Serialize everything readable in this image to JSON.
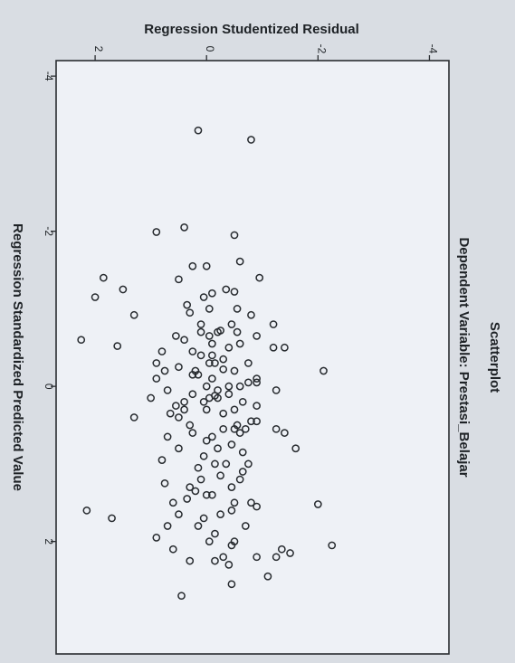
{
  "chart_data": {
    "type": "scatter",
    "orientation": "rotated-90-clockwise",
    "title": "Scatterplot",
    "subtitle": "Dependent Variable: Prestasi_Belajar",
    "xlabel": "Regression Standardized Predicted Value",
    "ylabel": "Regression Studentized Residual",
    "xlim": [
      -4.2,
      3.45
    ],
    "ylim": [
      -4.35,
      2.7
    ],
    "xticks": [
      -4,
      -2,
      0,
      2
    ],
    "yticks": [
      -4,
      -2,
      0,
      2
    ],
    "xtick_labels": [
      "-4",
      "-2",
      "0",
      "2"
    ],
    "ytick_labels": [
      "-4",
      "-2",
      "0",
      "2"
    ],
    "grid": false,
    "background_color": "#eef1f6",
    "frame_color": "#2a2d31",
    "marker": "open-circle",
    "marker_color": "#262a2e",
    "points": [
      [
        -3.18,
        -0.8
      ],
      [
        -2.05,
        0.4
      ],
      [
        -1.99,
        0.9
      ],
      [
        -1.61,
        -0.6
      ],
      [
        -1.55,
        0.25
      ],
      [
        -1.55,
        0.0
      ],
      [
        -1.4,
        1.85
      ],
      [
        -1.4,
        -0.95
      ],
      [
        -1.38,
        0.5
      ],
      [
        -1.25,
        1.5
      ],
      [
        -1.15,
        0.05
      ],
      [
        -1.15,
        2.0
      ],
      [
        -1.22,
        -0.5
      ],
      [
        -0.92,
        1.3
      ],
      [
        -0.92,
        -0.8
      ],
      [
        -0.72,
        -0.25
      ],
      [
        -0.7,
        -0.55
      ],
      [
        -0.6,
        2.25
      ],
      [
        -0.5,
        -1.4
      ],
      [
        -0.52,
        1.6
      ],
      [
        -0.5,
        -1.2
      ],
      [
        -0.35,
        -0.3
      ],
      [
        -0.3,
        0.9
      ],
      [
        -0.22,
        -0.3
      ],
      [
        -0.15,
        0.25
      ],
      [
        -0.1,
        0.9
      ],
      [
        0.0,
        -0.4
      ],
      [
        0.05,
        -1.25
      ],
      [
        0.0,
        -0.6
      ],
      [
        0.05,
        -0.2
      ],
      [
        -0.1,
        -0.9
      ],
      [
        -0.05,
        -0.9
      ],
      [
        -0.2,
        -2.1
      ],
      [
        0.12,
        -0.15
      ],
      [
        0.15,
        -0.05
      ],
      [
        0.2,
        0.4
      ],
      [
        0.25,
        0.55
      ],
      [
        0.3,
        -0.5
      ],
      [
        0.35,
        -0.3
      ],
      [
        0.45,
        -0.8
      ],
      [
        0.55,
        -0.5
      ],
      [
        0.6,
        -1.4
      ],
      [
        0.6,
        -0.6
      ],
      [
        0.65,
        -0.1
      ],
      [
        0.8,
        -1.6
      ],
      [
        1.0,
        -0.75
      ],
      [
        1.0,
        -0.15
      ],
      [
        1.2,
        0.1
      ],
      [
        1.3,
        0.3
      ],
      [
        1.1,
        -0.65
      ],
      [
        1.5,
        -0.5
      ],
      [
        1.5,
        0.6
      ],
      [
        1.52,
        -2.0
      ],
      [
        1.4,
        -0.1
      ],
      [
        2.45,
        -1.1
      ],
      [
        2.05,
        -2.25
      ],
      [
        2.1,
        -1.35
      ],
      [
        2.15,
        -1.5
      ],
      [
        2.2,
        -0.9
      ],
      [
        2.2,
        -1.25
      ],
      [
        2.0,
        -0.5
      ],
      [
        2.0,
        -0.05
      ],
      [
        2.25,
        -0.15
      ],
      [
        1.95,
        0.9
      ],
      [
        1.8,
        0.15
      ],
      [
        1.65,
        0.5
      ],
      [
        1.6,
        -0.45
      ],
      [
        1.45,
        0.35
      ],
      [
        1.35,
        0.2
      ],
      [
        1.05,
        0.15
      ],
      [
        0.9,
        0.05
      ],
      [
        0.8,
        0.5
      ],
      [
        0.7,
        0.0
      ],
      [
        0.6,
        0.25
      ],
      [
        0.5,
        0.3
      ],
      [
        0.4,
        0.5
      ],
      [
        0.3,
        0.4
      ],
      [
        0.2,
        0.05
      ],
      [
        0.15,
        -0.2
      ],
      [
        0.1,
        0.25
      ],
      [
        0.0,
        0.0
      ],
      [
        -0.1,
        -0.1
      ],
      [
        -0.2,
        0.2
      ],
      [
        -0.25,
        0.5
      ],
      [
        -0.3,
        -0.05
      ],
      [
        -0.4,
        -0.1
      ],
      [
        -0.45,
        0.25
      ],
      [
        -0.55,
        -0.1
      ],
      [
        -0.6,
        0.4
      ],
      [
        -0.65,
        0.55
      ],
      [
        -0.7,
        -0.2
      ],
      [
        -0.8,
        0.1
      ],
      [
        -0.95,
        0.3
      ],
      [
        -1.0,
        -0.05
      ],
      [
        -1.05,
        0.35
      ],
      [
        -0.7,
        0.1
      ],
      [
        -0.4,
        0.1
      ],
      [
        -0.15,
        0.15
      ],
      [
        0.1,
        -0.4
      ],
      [
        0.3,
        0.0
      ],
      [
        0.55,
        -0.3
      ],
      [
        0.8,
        -0.2
      ],
      [
        1.0,
        -0.35
      ],
      [
        1.3,
        -0.45
      ],
      [
        1.65,
        -0.25
      ],
      [
        1.9,
        -0.15
      ],
      [
        1.7,
        0.05
      ],
      [
        1.4,
        0.0
      ],
      [
        1.15,
        -0.25
      ],
      [
        0.85,
        -0.65
      ],
      [
        0.55,
        -0.7
      ],
      [
        0.25,
        -0.9
      ],
      [
        -0.05,
        -0.75
      ],
      [
        -0.3,
        -0.75
      ],
      [
        -0.55,
        -0.6
      ],
      [
        -0.8,
        -0.45
      ],
      [
        -1.0,
        -0.55
      ],
      [
        -1.25,
        -0.35
      ],
      [
        -0.65,
        -0.05
      ],
      [
        -0.5,
        -0.4
      ],
      [
        -0.2,
        -0.5
      ],
      [
        0.2,
        -0.65
      ],
      [
        0.5,
        -0.55
      ],
      [
        0.75,
        -0.45
      ],
      [
        1.2,
        -0.6
      ],
      [
        1.5,
        -0.8
      ],
      [
        1.8,
        -0.7
      ],
      [
        2.05,
        -0.45
      ],
      [
        2.25,
        0.3
      ],
      [
        1.25,
        0.75
      ],
      [
        0.95,
        0.8
      ],
      [
        0.65,
        0.7
      ],
      [
        0.35,
        0.65
      ],
      [
        0.05,
        0.7
      ],
      [
        -0.2,
        0.75
      ],
      [
        -0.45,
        0.8
      ],
      [
        1.8,
        0.7
      ],
      [
        2.1,
        0.6
      ],
      [
        1.7,
        1.7
      ],
      [
        1.6,
        2.15
      ],
      [
        2.3,
        -0.4
      ],
      [
        2.55,
        -0.45
      ],
      [
        2.7,
        0.45
      ],
      [
        -0.3,
        -0.15
      ],
      [
        0.15,
        1.0
      ],
      [
        0.4,
        1.3
      ],
      [
        0.55,
        -1.25
      ],
      [
        1.55,
        -0.9
      ],
      [
        -1.95,
        -0.5
      ],
      [
        -3.3,
        0.15
      ],
      [
        -0.8,
        -1.2
      ],
      [
        -1.2,
        -0.1
      ],
      [
        -0.65,
        -0.9
      ],
      [
        0.45,
        -0.9
      ],
      [
        2.2,
        -0.3
      ]
    ]
  }
}
